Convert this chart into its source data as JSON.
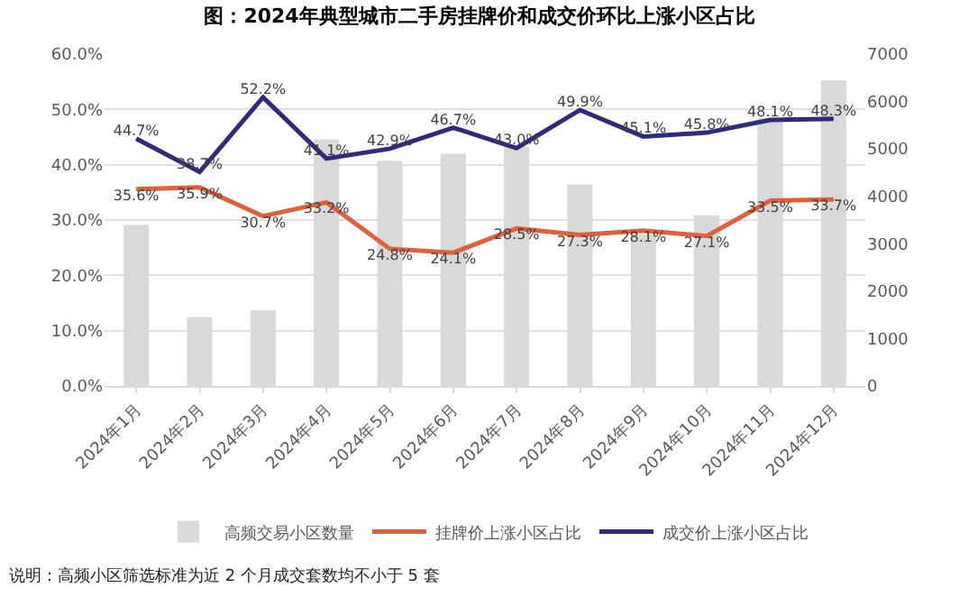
{
  "chart_data": {
    "type": "bar",
    "title": "图：2024年典型城市二手房挂牌价和成交价环比上涨小区占比",
    "categories": [
      "2024年1月",
      "2024年2月",
      "2024年3月",
      "2024年4月",
      "2024年5月",
      "2024年6月",
      "2024年7月",
      "2024年8月",
      "2024年9月",
      "2024年10月",
      "2024年11月",
      "2024年12月"
    ],
    "series": [
      {
        "name": "高频交易小区数量",
        "axis": "y2",
        "color": "#d9d9d9",
        "values": [
          3400,
          1450,
          1600,
          5200,
          4750,
          4900,
          5050,
          4250,
          3200,
          3600,
          5650,
          6450
        ]
      },
      {
        "name": "挂牌价上涨小区占比",
        "type": "line",
        "color": "#e0603a",
        "values": [
          35.6,
          35.9,
          30.7,
          33.2,
          24.8,
          24.1,
          28.5,
          27.3,
          28.1,
          27.1,
          33.5,
          33.7
        ],
        "value_labels": [
          "35.6%",
          "35.9%",
          "30.7%",
          "33.2%",
          "24.8%",
          "24.1%",
          "28.5%",
          "27.3%",
          "28.1%",
          "27.1%",
          "33.5%",
          "33.7%"
        ]
      },
      {
        "name": "成交价上涨小区占比",
        "type": "line",
        "color": "#2e2a7e",
        "values": [
          44.7,
          38.7,
          52.2,
          41.1,
          42.9,
          46.7,
          43.0,
          49.9,
          45.1,
          45.8,
          48.1,
          48.3
        ],
        "value_labels": [
          "44.7%",
          "38.7%",
          "52.2%",
          "41.1%",
          "42.9%",
          "46.7%",
          "43.0%",
          "49.9%",
          "45.1%",
          "45.8%",
          "48.1%",
          "48.3%"
        ]
      }
    ],
    "ylim": [
      0,
      60
    ],
    "yticks": [
      {
        "value": 0,
        "label": "0.0%"
      },
      {
        "value": 10,
        "label": "10.0%"
      },
      {
        "value": 20,
        "label": "20.0%"
      },
      {
        "value": 30,
        "label": "30.0%"
      },
      {
        "value": 40,
        "label": "40.0%"
      },
      {
        "value": 50,
        "label": "50.0%"
      },
      {
        "value": 60,
        "label": "60.0%"
      }
    ],
    "y2lim": [
      0,
      7000
    ],
    "y2ticks": [
      0,
      1000,
      2000,
      3000,
      4000,
      5000,
      6000,
      7000
    ],
    "grid": "y",
    "legend": "bottom",
    "marker": "none",
    "line_style": "solid",
    "annotations": [
      "说明：高频小区筛选标准为近 2 个月成交套数均不小于 5 套"
    ]
  }
}
